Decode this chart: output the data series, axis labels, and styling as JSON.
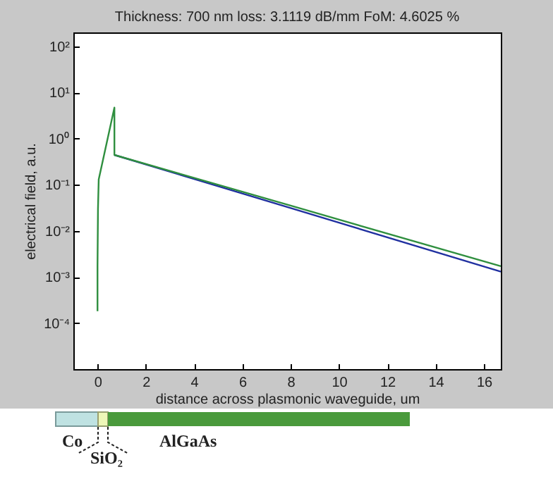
{
  "chart_data": {
    "type": "line",
    "title": "Thickness: 700 nm loss: 3.1119 dB/mm FoM: 4.6025 %",
    "xlabel": "distance across plasmonic waveguide, um",
    "ylabel": "electrical field, a.u.",
    "log": "y",
    "xlim": [
      -1,
      16.7
    ],
    "xticks": [
      0,
      2,
      4,
      6,
      8,
      10,
      12,
      14,
      16
    ],
    "ylim": [
      1e-05,
      200
    ],
    "yticks": [
      {
        "value": 0.0001,
        "label": "10⁻⁴"
      },
      {
        "value": 0.001,
        "label": "10⁻³"
      },
      {
        "value": 0.01,
        "label": "10⁻²"
      },
      {
        "value": 0.1,
        "label": "10⁻¹"
      },
      {
        "value": 1,
        "label": "10⁰"
      },
      {
        "value": 10,
        "label": "10¹"
      },
      {
        "value": 100,
        "label": "10²"
      }
    ],
    "grid": false,
    "legend": false,
    "line_style": "solid",
    "marker": "none",
    "series": [
      {
        "color": "#2030a0",
        "x": [
          0.7,
          8,
          16.7
        ],
        "values": [
          0.44,
          0.031,
          0.0013
        ]
      },
      {
        "color": "#2f8f3f",
        "x": [
          0,
          0,
          0.02,
          0.05,
          0.7,
          0.7,
          8,
          16.7
        ],
        "values": [
          0.00018,
          0.0017,
          0.03,
          0.13,
          4.7,
          0.44,
          0.035,
          0.0017
        ]
      }
    ],
    "annotations": [
      "Co",
      "SiO₂",
      "AlGaAs"
    ]
  }
}
